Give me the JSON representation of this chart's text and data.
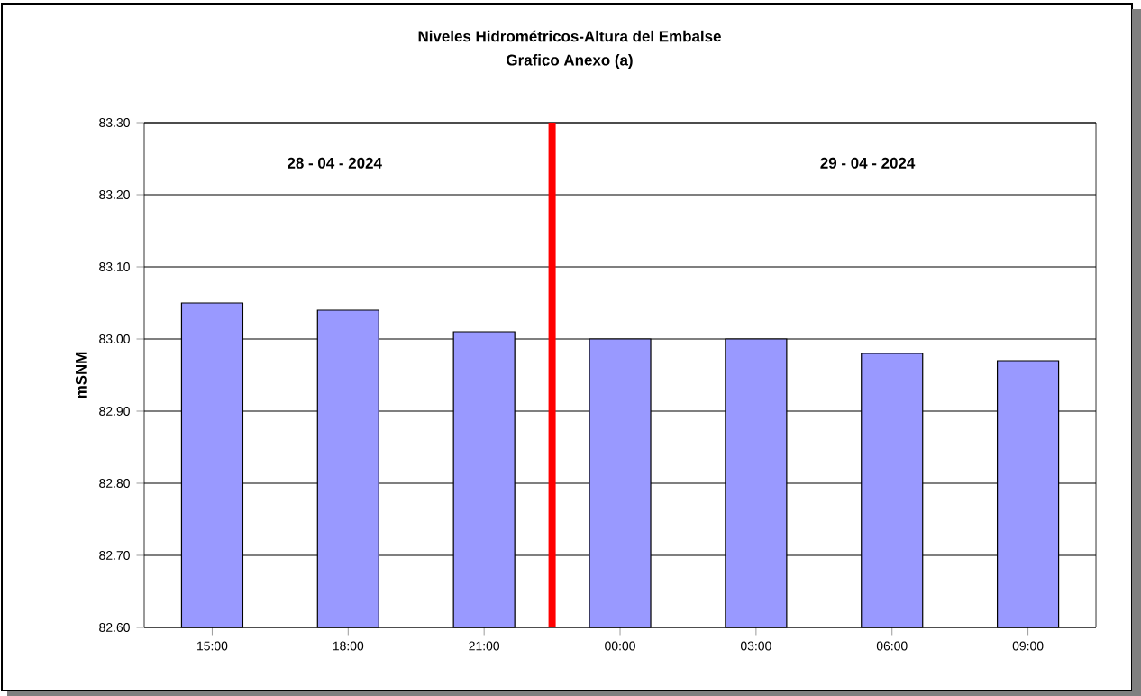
{
  "chart_data": {
    "type": "bar",
    "title": "Niveles Hidrométricos-Altura del Embalse",
    "subtitle": "Grafico Anexo (a)",
    "ylabel": "mSNM",
    "x": [
      "2024-04-28T15:00",
      "2024-04-28T18:00",
      "2024-04-28T21:00",
      "2024-04-29T00:00",
      "2024-04-29T03:00",
      "2024-04-29T06:00",
      "2024-04-29T09:00"
    ],
    "values": [
      83.05,
      83.04,
      83.01,
      83.0,
      83.0,
      82.98,
      82.97
    ],
    "color": "#9999ff",
    "xlim": [
      "2024-04-28T13:30",
      "2024-04-29T10:30"
    ],
    "xticks": [
      {
        "value": "2024-04-28T15:00",
        "label": "15:00"
      },
      {
        "value": "2024-04-28T18:00",
        "label": "18:00"
      },
      {
        "value": "2024-04-28T21:00",
        "label": "21:00"
      },
      {
        "value": "2024-04-29T00:00",
        "label": "00:00"
      },
      {
        "value": "2024-04-29T03:00",
        "label": "03:00"
      },
      {
        "value": "2024-04-29T06:00",
        "label": "06:00"
      },
      {
        "value": "2024-04-29T09:00",
        "label": "09:00"
      }
    ],
    "ylim": [
      82.6,
      83.3
    ],
    "yticks": [
      {
        "value": 82.6,
        "label": "82.60"
      },
      {
        "value": 82.7,
        "label": "82.70"
      },
      {
        "value": 82.8,
        "label": "82.80"
      },
      {
        "value": 82.9,
        "label": "82.90"
      },
      {
        "value": 83.0,
        "label": "83.00"
      },
      {
        "value": 83.1,
        "label": "83.10"
      },
      {
        "value": 83.2,
        "label": "83.20"
      },
      {
        "value": 83.3,
        "label": "83.30"
      }
    ],
    "grid": "y",
    "ref_lines": [
      {
        "axis": "x",
        "value": "2024-04-28T22:30",
        "color": "#ff0000"
      }
    ],
    "annotations": [
      "28 - 04 - 2024",
      "29 - 04 - 2024"
    ]
  }
}
